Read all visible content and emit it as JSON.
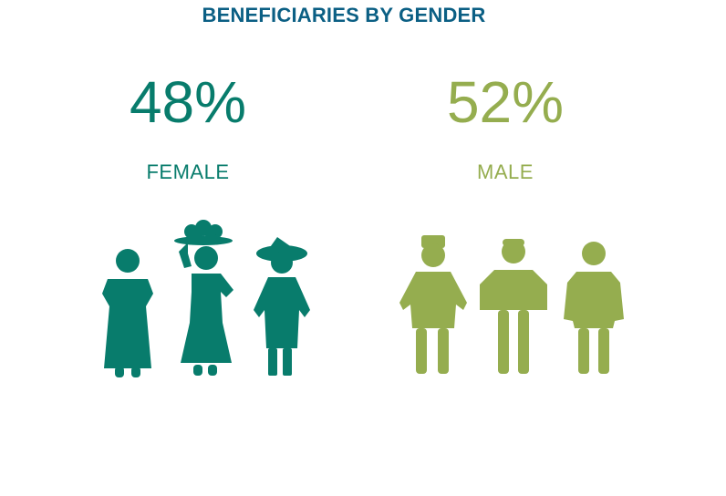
{
  "chart_data": {
    "type": "table",
    "title": "BENEFICIARIES BY GENDER",
    "categories": [
      "FEMALE",
      "MALE"
    ],
    "values": [
      48,
      52
    ],
    "value_labels": [
      "48%",
      "52%"
    ],
    "unit": "%"
  },
  "colors": {
    "title": "#0b5f84",
    "female": "#087c6c",
    "male": "#95ad4f"
  },
  "icons": {
    "female": [
      "woman-shawl-icon",
      "woman-fruit-basket-icon",
      "woman-wide-hat-icon"
    ],
    "male": [
      "man-cap-icon",
      "man-poncho-icon",
      "man-tunic-icon"
    ]
  }
}
